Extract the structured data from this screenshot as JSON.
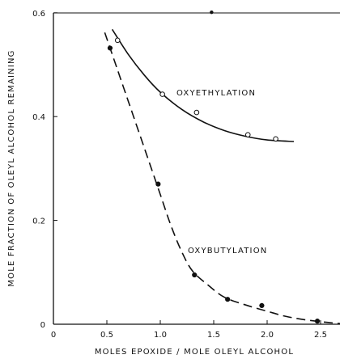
{
  "chart_data": {
    "type": "scatter",
    "title": "",
    "xlabel": "MOLES EPOXIDE / MOLE OLEYL ALCOHOL",
    "ylabel": "MOLE FRACTION OF OLEYL ALCOHOL REMAINING",
    "xlim": [
      0,
      2.75
    ],
    "ylim": [
      0,
      0.6
    ],
    "x_ticks": [
      0,
      0.5,
      1.0,
      1.5,
      2.0,
      2.5
    ],
    "x_tick_labels": [
      "0",
      "0.5",
      "1.0",
      "1.5",
      "2.0",
      "2.5"
    ],
    "y_ticks": [
      0,
      0.2,
      0.4,
      0.6
    ],
    "y_tick_labels": [
      "0",
      "0.2",
      "0.4",
      "0.6"
    ],
    "grid": false,
    "series": [
      {
        "label": "OXYETHYLATION",
        "marker": "open-circle",
        "line": "solid",
        "points": [
          [
            0.6,
            0.547
          ],
          [
            1.02,
            0.443
          ],
          [
            1.34,
            0.408
          ],
          [
            1.82,
            0.365
          ],
          [
            2.08,
            0.357
          ]
        ],
        "curve": [
          [
            0.55,
            0.568
          ],
          [
            0.7,
            0.52
          ],
          [
            0.85,
            0.48
          ],
          [
            1.0,
            0.447
          ],
          [
            1.2,
            0.414
          ],
          [
            1.4,
            0.39
          ],
          [
            1.6,
            0.373
          ],
          [
            1.8,
            0.362
          ],
          [
            2.0,
            0.355
          ],
          [
            2.25,
            0.352
          ]
        ]
      },
      {
        "label": "OXYBUTYLATION",
        "marker": "filled-circle",
        "line": "dashed",
        "points": [
          [
            0.53,
            0.532
          ],
          [
            0.98,
            0.27
          ],
          [
            1.32,
            0.095
          ],
          [
            1.63,
            0.048
          ],
          [
            1.95,
            0.036
          ],
          [
            2.47,
            0.006
          ]
        ],
        "curve": [
          [
            0.48,
            0.562
          ],
          [
            0.6,
            0.49
          ],
          [
            0.75,
            0.4
          ],
          [
            0.9,
            0.31
          ],
          [
            1.0,
            0.25
          ],
          [
            1.1,
            0.19
          ],
          [
            1.2,
            0.14
          ],
          [
            1.3,
            0.103
          ],
          [
            1.45,
            0.075
          ],
          [
            1.6,
            0.052
          ],
          [
            1.8,
            0.037
          ],
          [
            2.0,
            0.025
          ],
          [
            2.2,
            0.014
          ],
          [
            2.45,
            0.006
          ],
          [
            2.75,
            0.0
          ]
        ]
      }
    ],
    "stray_marks": [
      [
        1.48,
        0.601
      ]
    ]
  }
}
